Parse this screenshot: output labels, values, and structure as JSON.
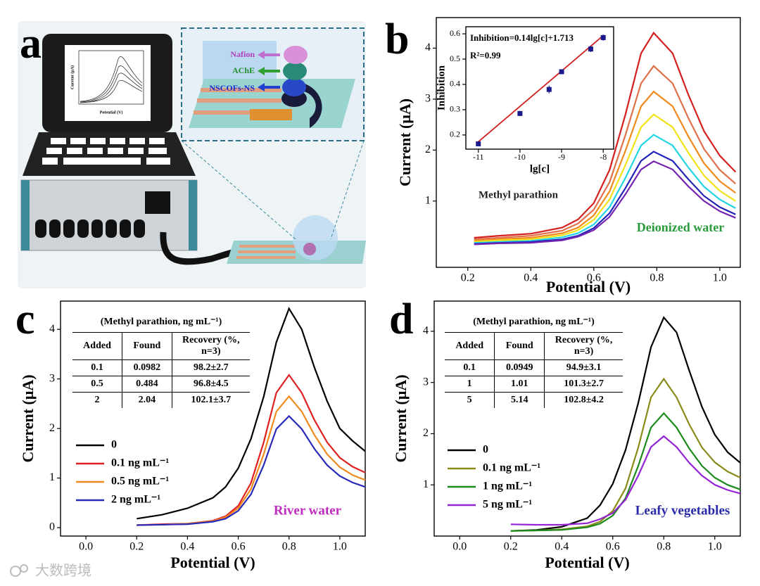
{
  "panel_labels": [
    "a",
    "b",
    "c",
    "d"
  ],
  "illustration": {
    "layers": [
      "Nafion",
      "AChE",
      "NSCOFs-NS"
    ],
    "screen_ylabel": "Current (μA)",
    "screen_xlabel": "Potential (V)"
  },
  "chart_data": [
    {
      "type": "line",
      "xlabel": "Potential (V)",
      "ylabel": "Current (μA)",
      "x": [
        0.22,
        0.3,
        0.4,
        0.5,
        0.55,
        0.6,
        0.65,
        0.7,
        0.75,
        0.79,
        0.85,
        0.9,
        0.95,
        1.0,
        1.05
      ],
      "series": [
        {
          "color": "#d42020",
          "values": [
            0.28,
            0.32,
            0.36,
            0.48,
            0.64,
            0.96,
            1.61,
            2.69,
            3.9,
            4.3,
            3.9,
            3.09,
            2.37,
            1.89,
            1.57
          ]
        },
        {
          "color": "#e0704a",
          "values": [
            0.25,
            0.28,
            0.32,
            0.42,
            0.56,
            0.83,
            1.37,
            2.29,
            3.31,
            3.65,
            3.31,
            2.63,
            2.02,
            1.61,
            1.34
          ]
        },
        {
          "color": "#f08a1c",
          "values": [
            0.22,
            0.25,
            0.28,
            0.37,
            0.48,
            0.72,
            1.19,
            1.98,
            2.86,
            3.15,
            2.86,
            2.27,
            1.74,
            1.39,
            1.16
          ]
        },
        {
          "color": "#f2e21a",
          "values": [
            0.2,
            0.23,
            0.25,
            0.33,
            0.43,
            0.63,
            1.03,
            1.7,
            2.45,
            2.7,
            2.45,
            1.95,
            1.5,
            1.2,
            1.0
          ]
        },
        {
          "color": "#22d4e4",
          "values": [
            0.18,
            0.2,
            0.22,
            0.29,
            0.37,
            0.54,
            0.88,
            1.45,
            2.09,
            2.3,
            2.09,
            1.66,
            1.28,
            1.03,
            0.86
          ]
        },
        {
          "color": "#2222b8",
          "values": [
            0.16,
            0.18,
            0.2,
            0.25,
            0.32,
            0.47,
            0.76,
            1.25,
            1.79,
            1.97,
            1.79,
            1.43,
            1.1,
            0.88,
            0.74
          ]
        },
        {
          "color": "#7424b0",
          "values": [
            0.15,
            0.17,
            0.18,
            0.23,
            0.3,
            0.43,
            0.69,
            1.13,
            1.62,
            1.78,
            1.62,
            1.29,
            1.0,
            0.8,
            0.67
          ]
        }
      ],
      "xlim": [
        0.1,
        1.065
      ],
      "ylim": [
        -0.3,
        4.6
      ],
      "xticks": [
        0.2,
        0.4,
        0.6,
        0.8,
        {
          "value": 1,
          "label": "1.0"
        }
      ],
      "yticks": [
        1,
        2,
        3,
        4
      ],
      "annotations": [
        {
          "text": "Methyl parathion",
          "color": "#222"
        },
        {
          "text": "Deionized water",
          "color": "#2a9a3a"
        }
      ]
    },
    {
      "type": "scatter",
      "xlabel": "lg[c]",
      "ylabel": "Inhibition",
      "x": [
        -11,
        -10,
        -9.3,
        -9,
        -8.3,
        -8
      ],
      "values": [
        0.165,
        0.285,
        0.38,
        0.45,
        0.54,
        0.585
      ],
      "errors": [
        0.008,
        0.01,
        0.015,
        0.008,
        0.012,
        0.012
      ],
      "color": "#1a1a8a",
      "fit": {
        "x": [
          -11,
          -8
        ],
        "values": [
          0.173,
          0.593
        ],
        "color": "#d02020"
      },
      "xlim": [
        -11.3,
        -7.75
      ],
      "ylim": [
        0.144,
        0.628
      ],
      "xticks": [
        -11,
        -10,
        -9,
        -8
      ],
      "yticks": [
        0.2,
        0.3,
        0.4,
        0.5,
        0.6
      ],
      "annotations": [
        {
          "text": "Inhibition=0.14lg[c]+1.713",
          "color": "#000"
        },
        {
          "text": "R²=0.99",
          "color": "#000"
        }
      ]
    },
    {
      "type": "line",
      "xlabel": "Potential (V)",
      "ylabel": "Current (μA)",
      "x": [
        0.2,
        0.3,
        0.4,
        0.5,
        0.55,
        0.6,
        0.65,
        0.7,
        0.75,
        0.8,
        0.85,
        0.9,
        0.95,
        1.0,
        1.05,
        1.1
      ],
      "series": [
        {
          "name": "0",
          "color": "#000000",
          "values": [
            0.18,
            0.26,
            0.39,
            0.6,
            0.82,
            1.2,
            1.79,
            2.64,
            3.74,
            4.42,
            4.0,
            3.23,
            2.55,
            2.0,
            1.75,
            1.54
          ]
        },
        {
          "name": "0.1 ng mL⁻¹",
          "color": "#e02020",
          "values": [
            0.05,
            0.07,
            0.08,
            0.14,
            0.23,
            0.44,
            0.9,
            1.72,
            2.72,
            3.08,
            2.72,
            2.17,
            1.72,
            1.41,
            1.23,
            1.11
          ]
        },
        {
          "name": "0.5 ng mL⁻¹",
          "color": "#f08a1c",
          "values": [
            0.05,
            0.06,
            0.08,
            0.13,
            0.21,
            0.39,
            0.78,
            1.48,
            2.34,
            2.65,
            2.34,
            1.87,
            1.48,
            1.22,
            1.06,
            0.96
          ]
        },
        {
          "name": "2 ng mL⁻¹",
          "color": "#2a2ab8",
          "values": [
            0.05,
            0.06,
            0.07,
            0.12,
            0.18,
            0.34,
            0.67,
            1.26,
            1.99,
            2.25,
            1.99,
            1.59,
            1.26,
            1.04,
            0.91,
            0.82
          ]
        }
      ],
      "xlim": [
        -0.1,
        1.1
      ],
      "ylim": [
        -0.17,
        4.57
      ],
      "xticks": [
        {
          "value": 0,
          "label": "0.0"
        },
        0.2,
        0.4,
        0.6,
        0.8,
        {
          "value": 1,
          "label": "1.0"
        }
      ],
      "yticks": [
        0,
        1,
        2,
        3,
        4
      ],
      "annotations": [
        {
          "text": "River water",
          "color": "#c02cc0"
        }
      ],
      "table": {
        "caption": "(Methyl parathion, ng mL⁻¹)",
        "header": [
          "Added",
          "Found",
          "Recovery (%, n=3)"
        ],
        "rows": [
          [
            "0.1",
            "0.0982",
            "98.2±2.7"
          ],
          [
            "0.5",
            "0.484",
            "96.8±4.5"
          ],
          [
            "2",
            "2.04",
            "102.1±3.7"
          ]
        ]
      }
    },
    {
      "type": "line",
      "xlabel": "Potential (V)",
      "ylabel": "Current (μA)",
      "x": [
        0.2,
        0.3,
        0.4,
        0.5,
        0.55,
        0.6,
        0.65,
        0.7,
        0.75,
        0.8,
        0.85,
        0.9,
        0.95,
        1.0,
        1.05,
        1.1
      ],
      "series": [
        {
          "name": "0",
          "color": "#000000",
          "values": [
            0.1,
            0.12,
            0.18,
            0.35,
            0.6,
            1.02,
            1.68,
            2.6,
            3.69,
            4.27,
            3.98,
            3.23,
            2.52,
            1.98,
            1.64,
            1.43
          ]
        },
        {
          "name": "0.1 ng mL⁻¹",
          "color": "#8a8a1a",
          "values": [
            0.1,
            0.11,
            0.13,
            0.19,
            0.28,
            0.49,
            0.93,
            1.73,
            2.71,
            3.07,
            2.71,
            2.18,
            1.73,
            1.44,
            1.26,
            1.14
          ]
        },
        {
          "name": "1 ng mL⁻¹",
          "color": "#1a8a1a",
          "values": [
            0.1,
            0.11,
            0.12,
            0.17,
            0.24,
            0.4,
            0.74,
            1.37,
            2.12,
            2.4,
            2.12,
            1.71,
            1.37,
            1.14,
            1.0,
            0.91
          ]
        },
        {
          "name": "5 ng mL⁻¹",
          "color": "#9424d4",
          "values": [
            0.23,
            0.22,
            0.22,
            0.25,
            0.33,
            0.45,
            0.71,
            1.18,
            1.74,
            1.95,
            1.74,
            1.43,
            1.18,
            1.0,
            0.9,
            0.83
          ]
        }
      ],
      "xlim": [
        -0.1,
        1.1
      ],
      "ylim": [
        0,
        4.59
      ],
      "xticks": [
        {
          "value": 0,
          "label": "0.0"
        },
        0.2,
        0.4,
        0.6,
        0.8,
        {
          "value": 1,
          "label": "1.0"
        }
      ],
      "yticks": [
        1,
        2,
        3,
        4
      ],
      "annotations": [
        {
          "text": "Leafy vegetables",
          "color": "#2b2ba8"
        }
      ],
      "table": {
        "caption": "(Methyl parathion, ng mL⁻¹)",
        "header": [
          "Added",
          "Found",
          "Recovery (%, n=3)"
        ],
        "rows": [
          [
            "0.1",
            "0.0949",
            "94.9±3.1"
          ],
          [
            "1",
            "1.01",
            "101.3±2.7"
          ],
          [
            "5",
            "5.14",
            "102.8±4.2"
          ]
        ]
      }
    }
  ],
  "watermark": "大数跨境"
}
